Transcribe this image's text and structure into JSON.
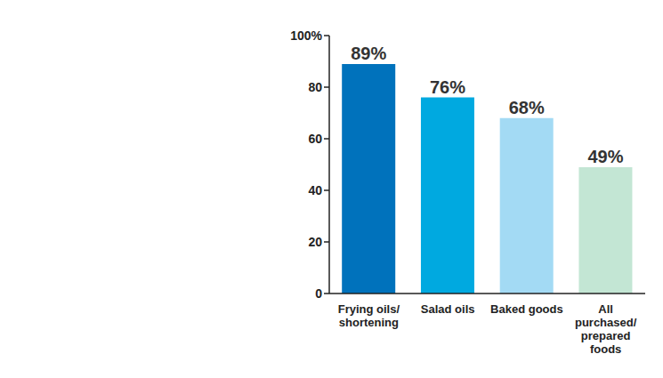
{
  "chart_data": {
    "type": "bar",
    "categories": [
      "Frying oils/shortening",
      "Salad oils",
      "Baked goods",
      "All purchased/prepared foods"
    ],
    "values": [
      89,
      76,
      68,
      49
    ],
    "value_labels": [
      "89%",
      "76%",
      "68%",
      "49%"
    ],
    "colors": [
      "#0072bc",
      "#00a9e0",
      "#a3daf4",
      "#c3e6d4"
    ],
    "ylim": [
      0,
      100
    ],
    "yticks": [
      0,
      20,
      40,
      60,
      80,
      {
        "value": 100,
        "label": "100%"
      }
    ],
    "grid": false,
    "data_labels": true
  }
}
